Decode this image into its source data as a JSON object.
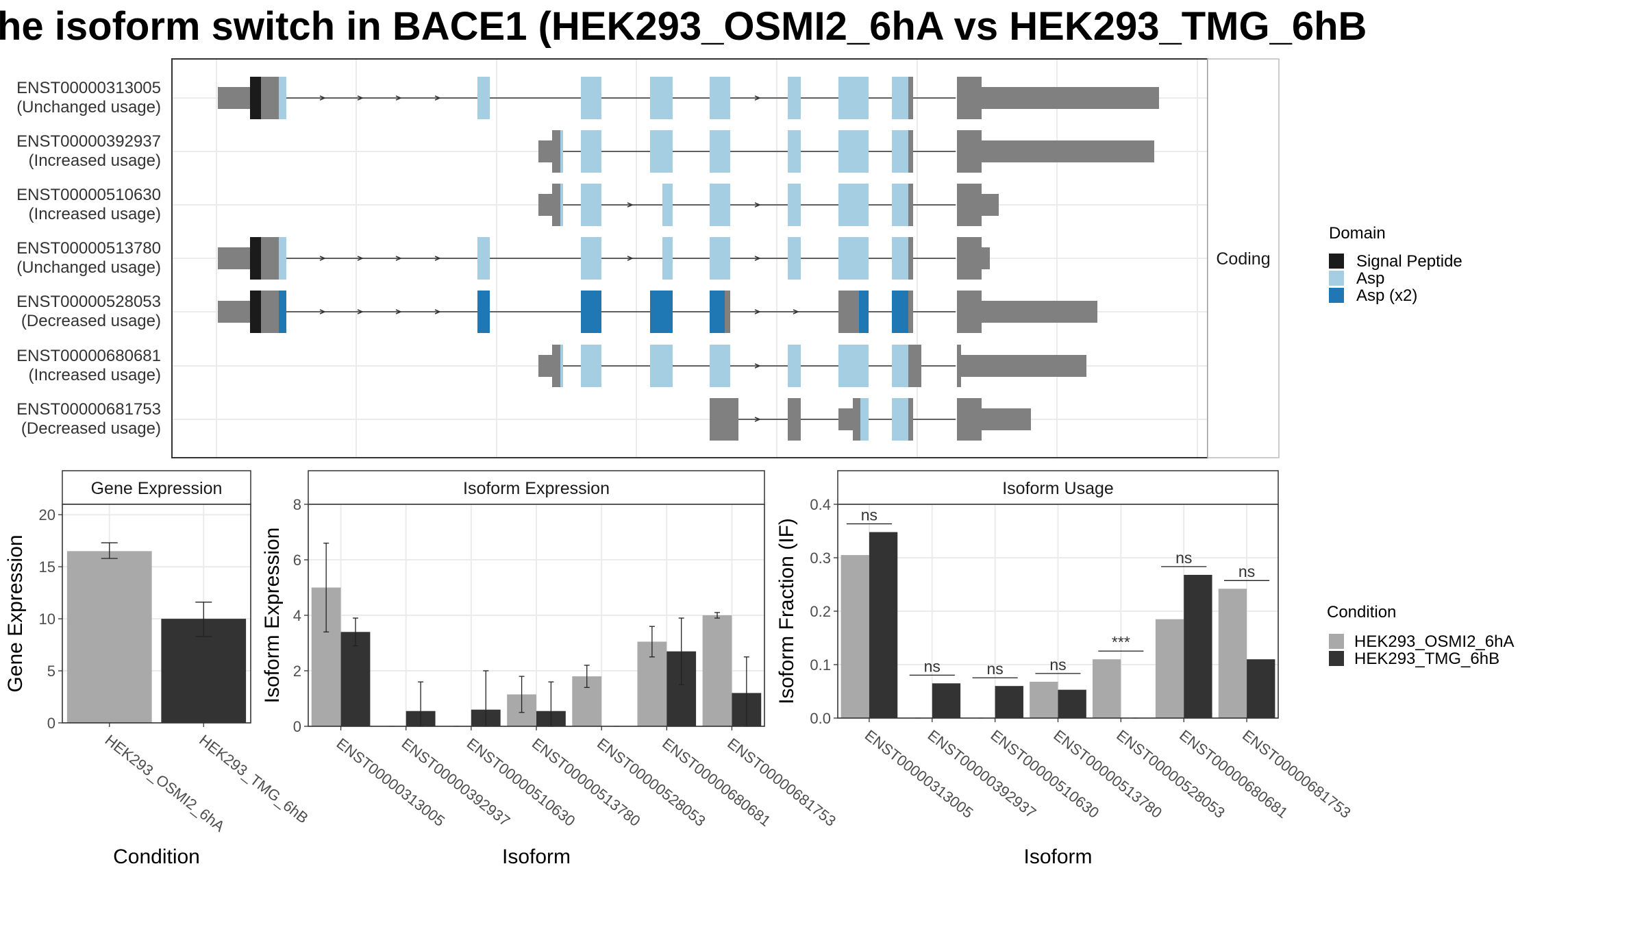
{
  "title": "he isoform switch in BACE1 (HEK293_OSMI2_6hA vs HEK293_TMG_6hB",
  "colors": {
    "condition_a": "#a9a9a9",
    "condition_b": "#333333",
    "signal_peptide": "#1b1b1b",
    "asp": "#a6cee3",
    "asp_x2": "#1f78b4",
    "noncoding": "#808080",
    "grid": "#ebebeb",
    "border": "#333333"
  },
  "structure_panel": {
    "facet_label": "Coding",
    "isoforms": [
      {
        "id": "ENST00000313005",
        "usage": "(Unchanged usage)"
      },
      {
        "id": "ENST00000392937",
        "usage": "(Increased usage)"
      },
      {
        "id": "ENST00000510630",
        "usage": "(Increased usage)"
      },
      {
        "id": "ENST00000513780",
        "usage": "(Unchanged usage)"
      },
      {
        "id": "ENST00000528053",
        "usage": "(Decreased usage)"
      },
      {
        "id": "ENST00000680681",
        "usage": "(Increased usage)"
      },
      {
        "id": "ENST00000681753",
        "usage": "(Decreased usage)"
      }
    ]
  },
  "legends": {
    "domain": {
      "title": "Domain",
      "items": [
        {
          "label": "Signal Peptide",
          "color": "#1b1b1b"
        },
        {
          "label": "Asp",
          "color": "#a6cee3"
        },
        {
          "label": "Asp (x2)",
          "color": "#1f78b4"
        }
      ]
    },
    "condition": {
      "title": "Condition",
      "items": [
        {
          "label": "HEK293_OSMI2_6hA",
          "color": "#a9a9a9"
        },
        {
          "label": "HEK293_TMG_6hB",
          "color": "#333333"
        }
      ]
    }
  },
  "chart_data": [
    {
      "type": "bar",
      "title": "Gene Expression",
      "xlabel": "Condition",
      "ylabel": "Gene Expression",
      "ylim": [
        0,
        21
      ],
      "yticks": [
        0,
        5,
        10,
        15,
        20
      ],
      "categories": [
        "HEK293_OSMI2_6hA",
        "HEK293_TMG_6hB"
      ],
      "values": [
        16.5,
        10.0
      ],
      "errors": [
        [
          15.8,
          17.3
        ],
        [
          8.3,
          11.6
        ]
      ]
    },
    {
      "type": "bar",
      "title": "Isoform Expression",
      "xlabel": "Isoform",
      "ylabel": "Isoform Expression",
      "ylim": [
        0,
        8
      ],
      "yticks": [
        0,
        2,
        4,
        6,
        8
      ],
      "categories": [
        "ENST00000313005",
        "ENST00000392937",
        "ENST00000510630",
        "ENST00000513780",
        "ENST00000528053",
        "ENST00000680681",
        "ENST00000681753"
      ],
      "series": [
        {
          "name": "HEK293_OSMI2_6hA",
          "values": [
            5.0,
            0,
            0,
            1.15,
            1.8,
            3.05,
            4.0
          ],
          "errors": [
            [
              3.4,
              6.6
            ],
            null,
            null,
            [
              0.5,
              1.8
            ],
            [
              1.4,
              2.2
            ],
            [
              2.5,
              3.6
            ],
            [
              3.9,
              4.1
            ]
          ]
        },
        {
          "name": "HEK293_TMG_6hB",
          "values": [
            3.4,
            0.55,
            0.6,
            0.55,
            0,
            2.7,
            1.2
          ],
          "errors": [
            [
              2.9,
              3.9
            ],
            [
              0.0,
              1.6
            ],
            [
              0.0,
              2.0
            ],
            [
              0.0,
              1.6
            ],
            null,
            [
              1.5,
              3.9
            ],
            [
              0.0,
              2.5
            ]
          ]
        }
      ]
    },
    {
      "type": "bar",
      "title": "Isoform Usage",
      "xlabel": "Isoform",
      "ylabel": "Isoform Fraction (IF)",
      "ylim": [
        0,
        0.4
      ],
      "yticks": [
        0.0,
        0.1,
        0.2,
        0.3,
        0.4
      ],
      "categories": [
        "ENST00000313005",
        "ENST00000392937",
        "ENST00000510630",
        "ENST00000513780",
        "ENST00000528053",
        "ENST00000680681",
        "ENST00000681753"
      ],
      "series": [
        {
          "name": "HEK293_OSMI2_6hA",
          "values": [
            0.305,
            0,
            0,
            0.068,
            0.11,
            0.185,
            0.242
          ]
        },
        {
          "name": "HEK293_TMG_6hB",
          "values": [
            0.348,
            0.065,
            0.06,
            0.053,
            0,
            0.268,
            0.11
          ]
        }
      ],
      "annotations": [
        "ns",
        "ns",
        "ns",
        "ns",
        "***",
        "ns",
        "ns"
      ]
    }
  ]
}
